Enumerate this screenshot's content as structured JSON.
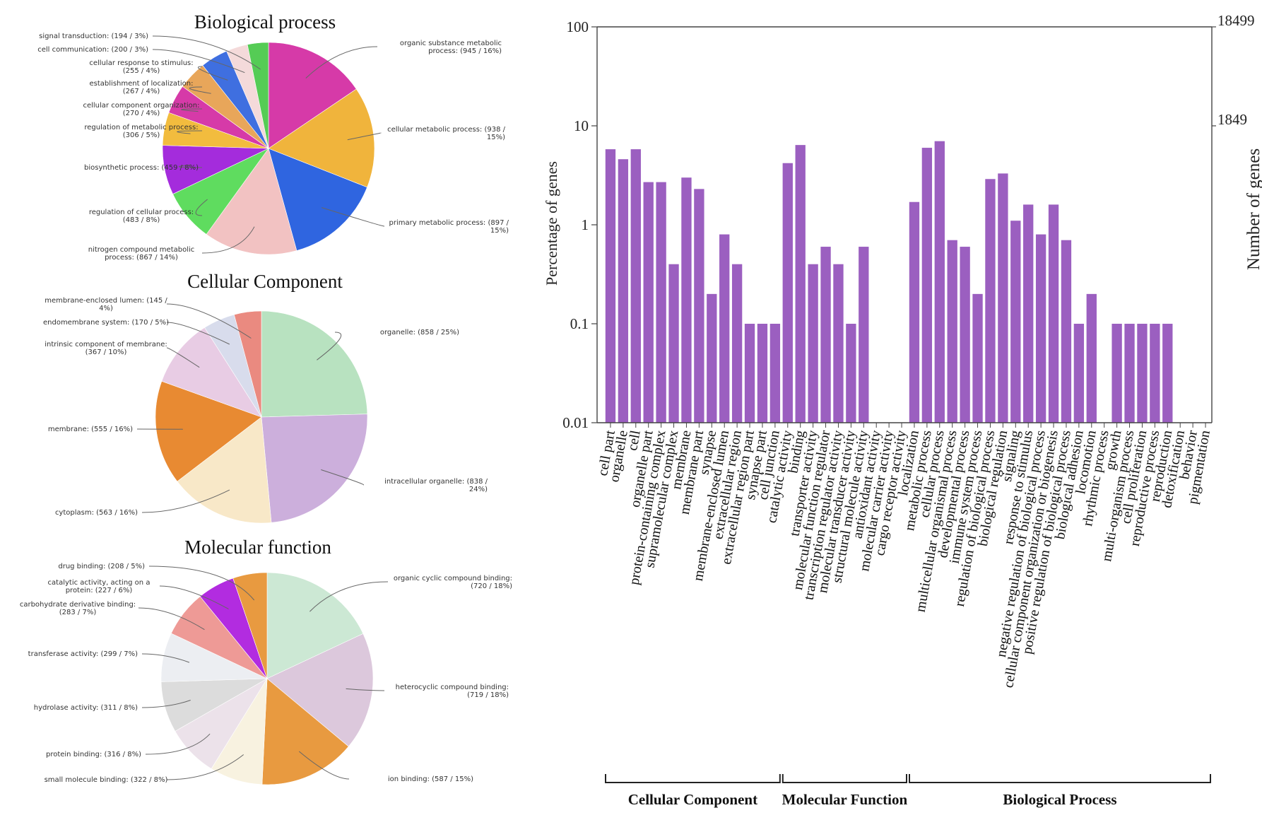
{
  "chart_data": [
    {
      "type": "pie",
      "title": "Biological process",
      "slices": [
        {
          "label": "organic substance metabolic process: (945 / 16%)",
          "value": 945,
          "color": "#d63aa8"
        },
        {
          "label": "cellular metabolic process: (938 / 15%)",
          "value": 938,
          "color": "#f0b43c"
        },
        {
          "label": "primary metabolic process: (897 / 15%)",
          "value": 897,
          "color": "#2f65e0"
        },
        {
          "label": "nitrogen compound metabolic process: (867 / 14%)",
          "value": 867,
          "color": "#f2c2c2"
        },
        {
          "label": "regulation of cellular process: (483 / 8%)",
          "value": 483,
          "color": "#5fdc5f"
        },
        {
          "label": "biosynthetic process: (459 / 8%)",
          "value": 459,
          "color": "#a42cdc"
        },
        {
          "label": "regulation of metabolic process: (306 / 5%)",
          "value": 306,
          "color": "#f2bc3e"
        },
        {
          "label": "cellular component organization: (270 / 4%)",
          "value": 270,
          "color": "#d63aa8"
        },
        {
          "label": "establishment of localization: (267 / 4%)",
          "value": 267,
          "color": "#e8a65a"
        },
        {
          "label": "cellular response to stimulus: (255 / 4%)",
          "value": 255,
          "color": "#3f6fe0"
        },
        {
          "label": "cell communication: (200 / 3%)",
          "value": 200,
          "color": "#f4dada"
        },
        {
          "label": "signal transduction: (194 / 3%)",
          "value": 194,
          "color": "#55cc55"
        }
      ]
    },
    {
      "type": "pie",
      "title": "Cellular Component",
      "slices": [
        {
          "label": "organelle: (858 / 25%)",
          "value": 858,
          "color": "#b8e2c0"
        },
        {
          "label": "intracellular organelle: (838 / 24%)",
          "value": 838,
          "color": "#ccafdc"
        },
        {
          "label": "cytoplasm: (563 / 16%)",
          "value": 563,
          "color": "#f8e8c8"
        },
        {
          "label": "membrane: (555 / 16%)",
          "value": 555,
          "color": "#e88a32"
        },
        {
          "label": "intrinsic component of membrane: (367 / 10%)",
          "value": 367,
          "color": "#e8cce4"
        },
        {
          "label": "endomembrane system: (170 / 5%)",
          "value": 170,
          "color": "#d8dcec"
        },
        {
          "label": "membrane-enclosed lumen: (145 / 4%)",
          "value": 145,
          "color": "#ea8a80"
        }
      ]
    },
    {
      "type": "pie",
      "title": "Molecular function",
      "slices": [
        {
          "label": "organic cyclic compound binding: (720 / 18%)",
          "value": 720,
          "color": "#cce8d4"
        },
        {
          "label": "heterocyclic compound binding: (719 / 18%)",
          "value": 719,
          "color": "#dcc8dc"
        },
        {
          "label": "ion binding: (587 / 15%)",
          "value": 587,
          "color": "#e89a40"
        },
        {
          "label": "small molecule binding: (322 / 8%)",
          "value": 322,
          "color": "#f8f2e0"
        },
        {
          "label": "protein binding: (316 / 8%)",
          "value": 316,
          "color": "#ece2ea"
        },
        {
          "label": "hydrolase activity: (311 / 8%)",
          "value": 311,
          "color": "#dcdcdc"
        },
        {
          "label": "transferase activity: (299 / 7%)",
          "value": 299,
          "color": "#eceef2"
        },
        {
          "label": "carbohydrate derivative binding: (283 / 7%)",
          "value": 283,
          "color": "#ee9a96"
        },
        {
          "label": "catalytic activity, acting on a protein: (227 / 6%)",
          "value": 227,
          "color": "#b22ce0"
        },
        {
          "label": "drug binding: (208 / 5%)",
          "value": 208,
          "color": "#e89a40"
        }
      ]
    },
    {
      "type": "bar",
      "ylabel": "Percentage of genes",
      "ylabel_right": "Number of genes",
      "yscale": "log",
      "ylim": [
        0.01,
        100
      ],
      "y_ticks": [
        "0.01",
        "0.1",
        "1",
        "10",
        "100"
      ],
      "right_ticks": [
        "1849",
        "18499"
      ],
      "bar_color": "#9b5fc0",
      "categories": [
        "cell part",
        "organelle",
        "cell",
        "organelle part",
        "protein-containing complex",
        "supramolecular complex",
        "membrane",
        "membrane part",
        "synapse",
        "membrane-enclosed lumen",
        "extracellular region",
        "extracellular region part",
        "synapse part",
        "cell junction",
        "catalytic activity",
        "binding",
        "transporter activity",
        "molecular function regulator",
        "transcription regulator activity",
        "molecular transducer activity",
        "structural molecule activity",
        "antioxidant activity",
        "molecular carrier activity",
        "cargo receptor activity",
        "localization",
        "metabolic process",
        "cellular process",
        "multicellular organismal process",
        "developmental process",
        "immune system process",
        "regulation of biological process",
        "biological regulation",
        "signaling",
        "response to stimulus",
        "negative regulation of biological process",
        "cellular component organization or biogenesis",
        "positive regulation of biological process",
        "biological adhesion",
        "locomotion",
        "rhythmic process",
        "growth",
        "multi-organism process",
        "cell proliferation",
        "reproductive process",
        "reproduction",
        "detoxification",
        "behavior",
        "pigmentation"
      ],
      "values": [
        5.8,
        4.6,
        5.8,
        2.7,
        2.7,
        0.4,
        3.0,
        2.3,
        0.2,
        0.8,
        0.4,
        0.1,
        0.1,
        0.1,
        4.2,
        6.4,
        0.4,
        0.6,
        0.4,
        0.1,
        0.6,
        null,
        null,
        null,
        1.7,
        6.0,
        7.0,
        0.7,
        0.6,
        0.2,
        2.9,
        3.3,
        1.1,
        1.6,
        0.8,
        1.6,
        0.7,
        0.1,
        0.2,
        null,
        0.1,
        0.1,
        0.1,
        0.1,
        0.1,
        null,
        null,
        null
      ],
      "groups": [
        {
          "name": "Cellular Component",
          "start": 0,
          "end": 13
        },
        {
          "name": "Molecular Function",
          "start": 14,
          "end": 23
        },
        {
          "name": "Biological Process",
          "start": 24,
          "end": 47
        }
      ]
    }
  ]
}
